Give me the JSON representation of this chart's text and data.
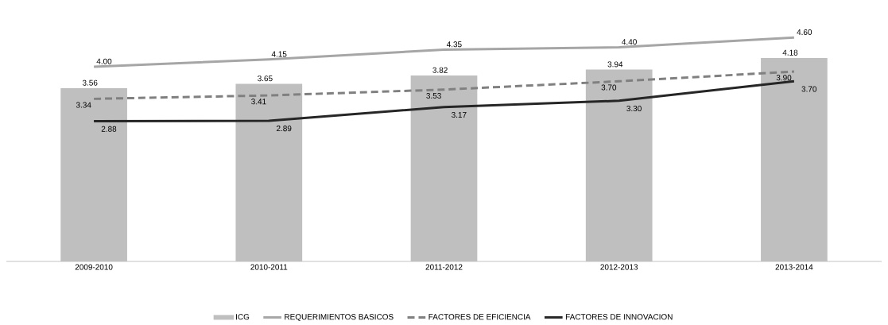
{
  "chart_data": {
    "type": "bar",
    "categories": [
      "2009-2010",
      "2010-2011",
      "2011-2012",
      "2012-2013",
      "2013-2014"
    ],
    "series": [
      {
        "name": "ICG",
        "color": "#bfbfbf",
        "values": [
          3.56,
          3.65,
          3.82,
          3.94,
          4.18
        ],
        "value_labels": [
          "3.56",
          "3.65",
          "3.82",
          "3.94",
          "4.18"
        ]
      },
      {
        "name": "REQUERIMIENTOS BASICOS",
        "type": "line",
        "color": "#a6a6a6",
        "line_style": "solid",
        "values": [
          4.0,
          4.15,
          4.35,
          4.4,
          4.6
        ],
        "value_labels": [
          "4.00",
          "4.15",
          "4.35",
          "4.40",
          "4.60"
        ]
      },
      {
        "name": "FACTORES DE EFICIENCIA",
        "type": "line",
        "color": "#808080",
        "line_style": "dashed",
        "values": [
          3.34,
          3.41,
          3.53,
          3.7,
          3.9
        ],
        "value_labels": [
          "3.34",
          "3.41",
          "3.53",
          "3.70",
          "3.90"
        ]
      },
      {
        "name": "FACTORES DE INNOVACION",
        "type": "line",
        "color": "#262626",
        "line_style": "solid",
        "values": [
          2.88,
          2.89,
          3.17,
          3.3,
          3.7
        ],
        "value_labels": [
          "2.88",
          "2.89",
          "3.17",
          "3.30",
          "3.70"
        ]
      }
    ],
    "tick_labels": "x",
    "legend": "bottom",
    "marker": "none"
  }
}
